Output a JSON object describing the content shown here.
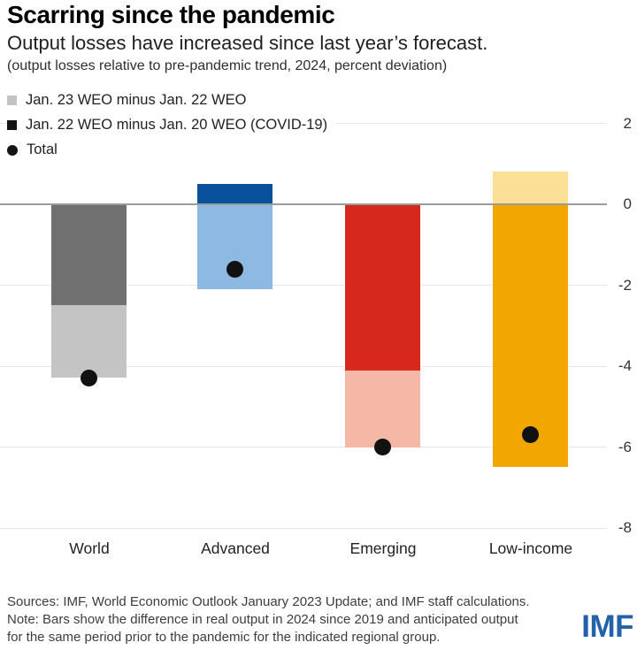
{
  "header": {
    "title": "Scarring since the pandemic",
    "subtitle": "Output losses have increased since last year’s forecast.",
    "note": "(output losses relative to pre-pandemic trend, 2024, percent deviation)"
  },
  "legend": {
    "items": [
      {
        "label": "Jan. 23 WEO minus Jan. 22 WEO",
        "swatch": "square",
        "color": "#c4c4c4"
      },
      {
        "label": "Jan. 22 WEO minus Jan. 20 WEO (COVID-19)",
        "swatch": "square",
        "color": "#141414"
      },
      {
        "label": "Total",
        "swatch": "circle",
        "color": "#141414"
      }
    ]
  },
  "chart_data": {
    "type": "bar",
    "stacked": true,
    "title": "Scarring since the pandemic",
    "subtitle": "Output losses have increased since last year’s forecast.",
    "unit_note": "output losses relative to pre-pandemic trend, 2024, percent deviation",
    "categories": [
      "World",
      "Advanced",
      "Emerging",
      "Low-income"
    ],
    "series": [
      {
        "name": "Jan. 23 WEO minus Jan. 22 WEO",
        "role": "bar-light",
        "values": [
          -1.8,
          -2.1,
          -1.9,
          0.8
        ]
      },
      {
        "name": "Jan. 22 WEO minus Jan. 20 WEO (COVID-19)",
        "role": "bar-dark",
        "values": [
          -2.5,
          0.5,
          -4.1,
          -6.5
        ]
      },
      {
        "name": "Total",
        "role": "dot",
        "values": [
          -4.3,
          -1.6,
          -6.0,
          -5.7
        ]
      }
    ],
    "colors": {
      "light": [
        "#c4c4c4",
        "#8db9e2",
        "#f5b7a6",
        "#fcdf96"
      ],
      "dark": [
        "#717171",
        "#09529b",
        "#d7281d",
        "#f2a602"
      ],
      "dot": "#111111",
      "zero_line": "#9b9b9b",
      "gridline": "#e6e6e6"
    },
    "yticks": [
      2,
      0,
      -2,
      -4,
      -6,
      -8
    ],
    "ylim": [
      -8.6,
      2.2
    ],
    "grid": true,
    "legend_position": "top-left",
    "value_axis_side": "right"
  },
  "footer": {
    "sources": "Sources: IMF, World Economic Outlook January 2023 Update; and IMF staff calculations.",
    "note_line1": "Note: Bars show the difference in real output in 2024 since 2019 and anticipated output",
    "note_line2": "for the same period prior to the pandemic for the indicated regional group.",
    "logo": "IMF",
    "logo_color": "#2361a8"
  }
}
